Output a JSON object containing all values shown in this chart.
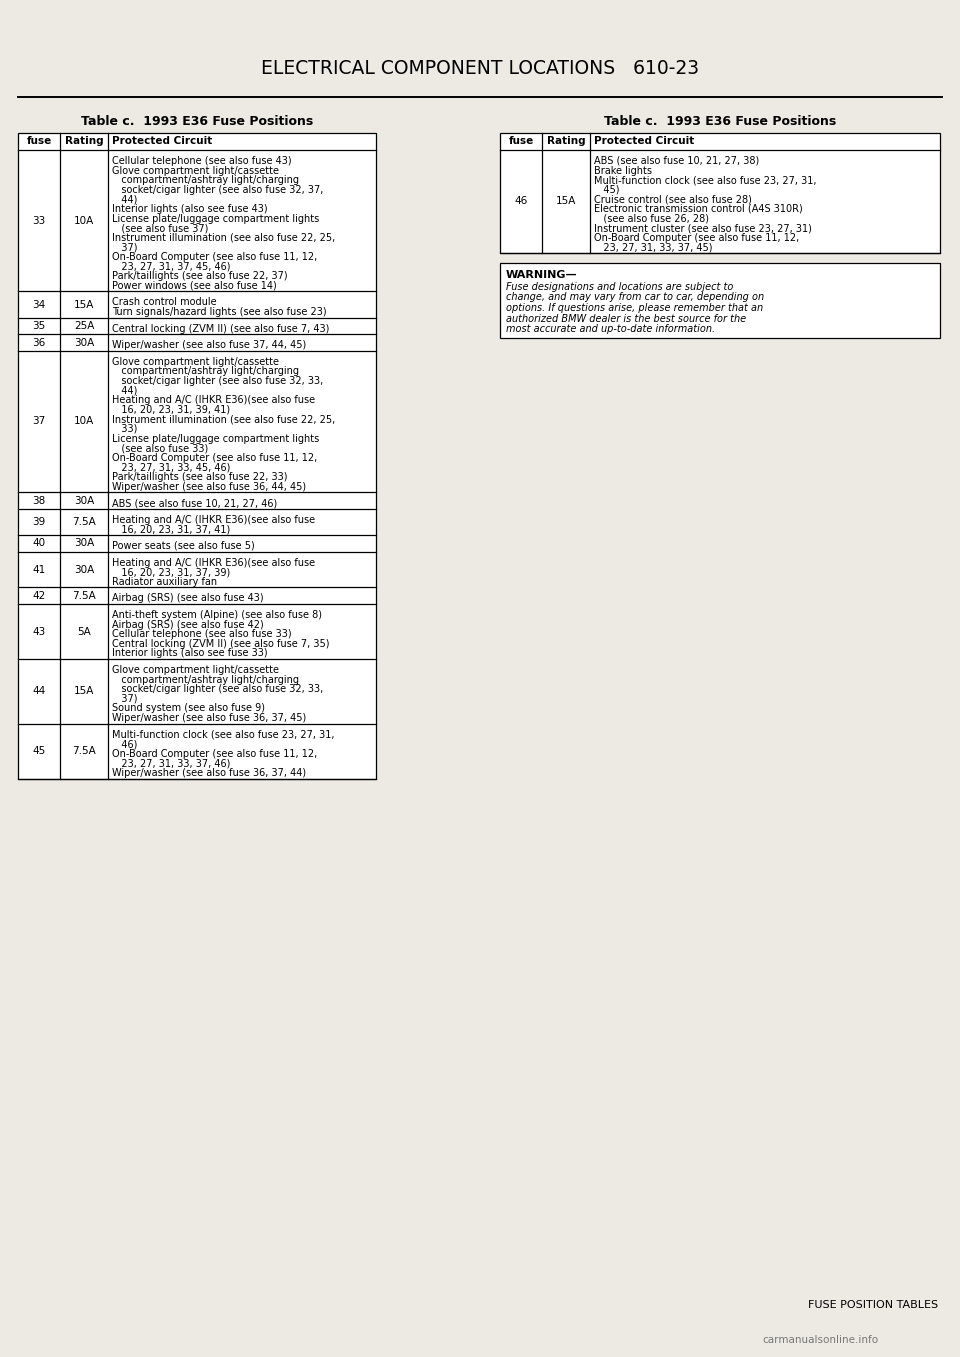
{
  "page_title_left": "E",
  "page_title": "LECTRICAL COMPONENT LOCATIONS   610-23",
  "footer_text": "FUSE POSITION TABLES",
  "watermark": "carmanualsonline.info",
  "left_table_title": "Table c.  1993 E36 Fuse Positions",
  "right_table_title": "Table c.  1993 E36 Fuse Positions",
  "col_headers": [
    "fuse",
    "Rating",
    "Protected Circuit"
  ],
  "left_rows": [
    {
      "fuse": "33",
      "rating": "10A",
      "lines": [
        "Cellular telephone (see also fuse 43)",
        "Glove compartment light/cassette",
        "   compartment/ashtray light/charging",
        "   socket/cigar lighter (see also fuse 32, 37,",
        "   44)",
        "Interior lights (also see fuse 43)",
        "License plate/luggage compartment lights",
        "   (see also fuse 37)",
        "Instrument illumination (see also fuse 22, 25,",
        "   37)",
        "On-Board Computer (see also fuse 11, 12,",
        "   23, 27, 31, 37, 45, 46)",
        "Park/taillights (see also fuse 22, 37)",
        "Power windows (see also fuse 14)"
      ]
    },
    {
      "fuse": "34",
      "rating": "15A",
      "lines": [
        "Crash control module",
        "Turn signals/hazard lights (see also fuse 23)"
      ]
    },
    {
      "fuse": "35",
      "rating": "25A",
      "lines": [
        "Central locking (ZVM II) (see also fuse 7, 43)"
      ]
    },
    {
      "fuse": "36",
      "rating": "30A",
      "lines": [
        "Wiper/washer (see also fuse 37, 44, 45)"
      ]
    },
    {
      "fuse": "37",
      "rating": "10A",
      "lines": [
        "Glove compartment light/cassette",
        "   compartment/ashtray light/charging",
        "   socket/cigar lighter (see also fuse 32, 33,",
        "   44)",
        "Heating and A/C (IHKR E36)(see also fuse",
        "   16, 20, 23, 31, 39, 41)",
        "Instrument illumination (see also fuse 22, 25,",
        "   33)",
        "License plate/luggage compartment lights",
        "   (see also fuse 33)",
        "On-Board Computer (see also fuse 11, 12,",
        "   23, 27, 31, 33, 45, 46)",
        "Park/taillights (see also fuse 22, 33)",
        "Wiper/washer (see also fuse 36, 44, 45)"
      ]
    },
    {
      "fuse": "38",
      "rating": "30A",
      "lines": [
        "ABS (see also fuse 10, 21, 27, 46)"
      ]
    },
    {
      "fuse": "39",
      "rating": "7.5A",
      "lines": [
        "Heating and A/C (IHKR E36)(see also fuse",
        "   16, 20, 23, 31, 37, 41)"
      ]
    },
    {
      "fuse": "40",
      "rating": "30A",
      "lines": [
        "Power seats (see also fuse 5)"
      ]
    },
    {
      "fuse": "41",
      "rating": "30A",
      "lines": [
        "Heating and A/C (IHKR E36)(see also fuse",
        "   16, 20, 23, 31, 37, 39)",
        "Radiator auxiliary fan"
      ]
    },
    {
      "fuse": "42",
      "rating": "7.5A",
      "lines": [
        "Airbag (SRS) (see also fuse 43)"
      ]
    },
    {
      "fuse": "43",
      "rating": "5A",
      "lines": [
        "Anti-theft system (Alpine) (see also fuse 8)",
        "Airbag (SRS) (see also fuse 42)",
        "Cellular telephone (see also fuse 33)",
        "Central locking (ZVM II) (see also fuse 7, 35)",
        "Interior lights (also see fuse 33)"
      ]
    },
    {
      "fuse": "44",
      "rating": "15A",
      "lines": [
        "Glove compartment light/cassette",
        "   compartment/ashtray light/charging",
        "   socket/cigar lighter (see also fuse 32, 33,",
        "   37)",
        "Sound system (see also fuse 9)",
        "Wiper/washer (see also fuse 36, 37, 45)"
      ]
    },
    {
      "fuse": "45",
      "rating": "7.5A",
      "lines": [
        "Multi-function clock (see also fuse 23, 27, 31,",
        "   46)",
        "On-Board Computer (see also fuse 11, 12,",
        "   23, 27, 31, 33, 37, 46)",
        "Wiper/washer (see also fuse 36, 37, 44)"
      ]
    }
  ],
  "right_rows": [
    {
      "fuse": "46",
      "rating": "15A",
      "lines": [
        "ABS (see also fuse 10, 21, 27, 38)",
        "Brake lights",
        "Multi-function clock (see also fuse 23, 27, 31,",
        "   45)",
        "Cruise control (see also fuse 28)",
        "Electronic transmission control (A4S 310R)",
        "   (see also fuse 26, 28)",
        "Instrument cluster (see also fuse 23, 27, 31)",
        "On-Board Computer (see also fuse 11, 12,",
        "   23, 27, 31, 33, 37, 45)"
      ]
    }
  ],
  "warning_title": "WARNING—",
  "warning_lines": [
    "Fuse designations and locations are subject to",
    "change, and may vary from car to car, depending on",
    "options. If questions arise, please remember that an",
    "authorized BMW dealer is the best source for the",
    "most accurate and up-to-date information."
  ],
  "bg_color": "#ede9e3",
  "line_color": "#000000"
}
